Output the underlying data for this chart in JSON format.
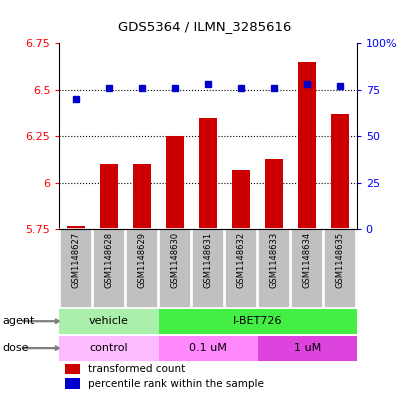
{
  "title": "GDS5364 / ILMN_3285616",
  "samples": [
    "GSM1148627",
    "GSM1148628",
    "GSM1148629",
    "GSM1148630",
    "GSM1148631",
    "GSM1148632",
    "GSM1148633",
    "GSM1148634",
    "GSM1148635"
  ],
  "bar_values": [
    5.77,
    6.1,
    6.1,
    6.25,
    6.35,
    6.07,
    6.13,
    6.65,
    6.37
  ],
  "bar_base": 5.75,
  "dot_percentile": [
    70,
    76,
    76,
    76,
    78,
    76,
    76,
    78,
    77
  ],
  "ylim_left": [
    5.75,
    6.75
  ],
  "ylim_right": [
    0,
    100
  ],
  "yticks_left": [
    5.75,
    6.0,
    6.25,
    6.5,
    6.75
  ],
  "ytick_labels_left": [
    "5.75",
    "6",
    "6.25",
    "6.5",
    "6.75"
  ],
  "yticks_right": [
    0,
    25,
    50,
    75,
    100
  ],
  "ytick_labels_right": [
    "0",
    "25",
    "50",
    "75",
    "100%"
  ],
  "bar_color": "#cc0000",
  "dot_color": "#0000cc",
  "agent_vehicle_color": "#aaf0aa",
  "agent_ibet_color": "#44ee44",
  "dose_control_color": "#ffbbff",
  "dose_01um_color": "#ff88ff",
  "dose_1um_color": "#dd44dd",
  "legend_bar_label": "transformed count",
  "legend_dot_label": "percentile rank within the sample",
  "bg_color": "#ffffff",
  "sample_bg": "#c0c0c0",
  "sample_border": "#ffffff"
}
